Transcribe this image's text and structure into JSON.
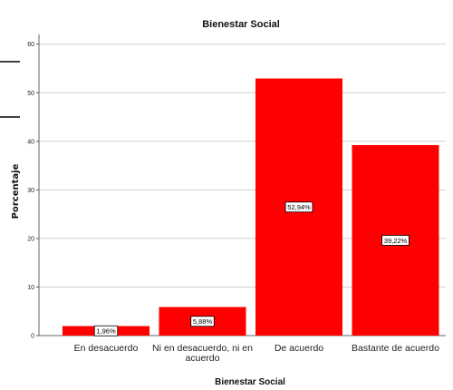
{
  "chart_data": {
    "type": "bar",
    "title": "Bienestar Social",
    "xlabel": "Bienestar Social",
    "ylabel": "Porcentaje",
    "categories": [
      "En desacuerdo",
      "Ni en desacuerdo, ni en acuerdo",
      "De acuerdo",
      "Bastante de acuerdo"
    ],
    "category_lines": [
      [
        "En desacuerdo"
      ],
      [
        "Ni en desacuerdo, ni en",
        "acuerdo"
      ],
      [
        "De acuerdo"
      ],
      [
        "Bastante de acuerdo"
      ]
    ],
    "values": [
      1.96,
      5.88,
      52.94,
      39.22
    ],
    "data_labels": [
      "1,96%",
      "5,88%",
      "52,94%",
      "39,22%"
    ],
    "yticks": [
      0,
      10,
      20,
      30,
      40,
      50,
      60
    ],
    "ylim": [
      0,
      62
    ],
    "grid": true,
    "bar_color": "#ff0000"
  }
}
